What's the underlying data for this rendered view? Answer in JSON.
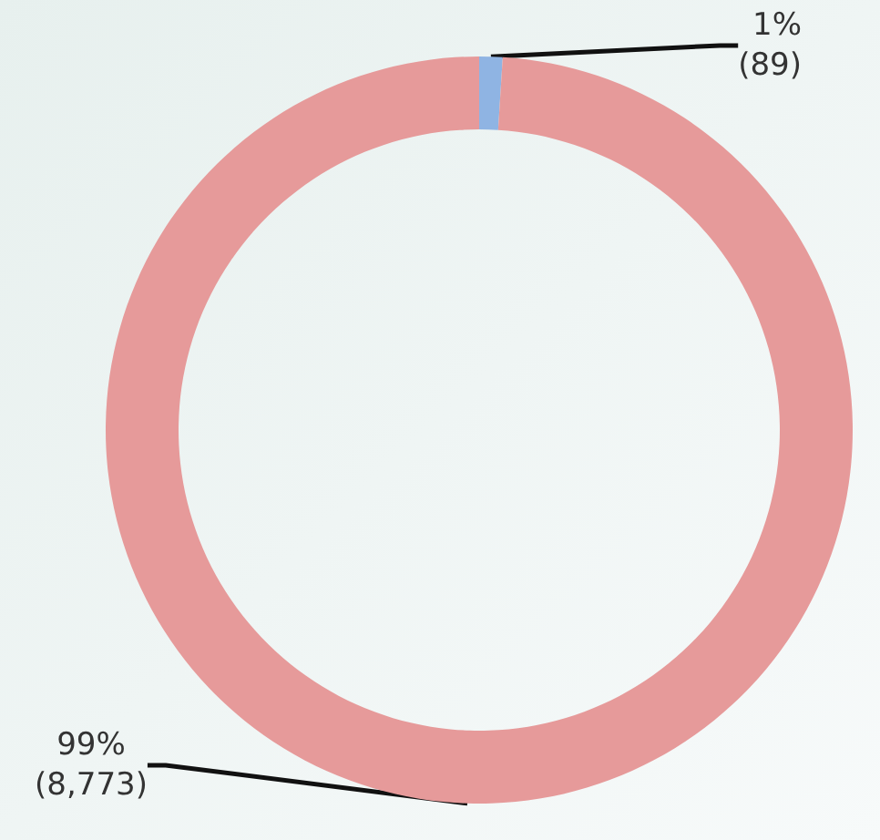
{
  "chart_data": {
    "type": "donut",
    "categories": [
      null,
      null
    ],
    "values": [
      89,
      8773
    ],
    "colors": [
      "#8fb4e3",
      "#e69a9a"
    ],
    "value_labels": [
      "1%\n(89)",
      "99%\n(8,773)"
    ]
  }
}
